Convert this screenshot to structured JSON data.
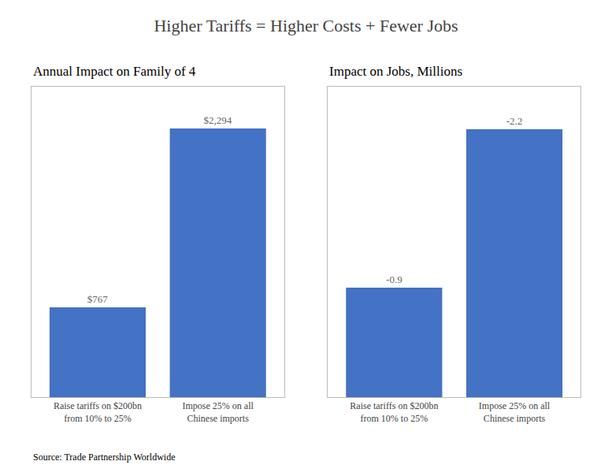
{
  "title": "Higher Tariffs = Higher Costs + Fewer Jobs",
  "annotations": [
    "Source: Trade Partnership Worldwide"
  ],
  "chart_data": [
    {
      "type": "bar",
      "subtitle": "Annual Impact on Family of 4",
      "categories": [
        "Raise tariffs on $200bn\nfrom 10% to 25%",
        "Impose 25% on all\nChinese imports"
      ],
      "values": [
        767,
        2294
      ],
      "value_labels": [
        "$767",
        "$2,294"
      ],
      "data_labels": true,
      "color": "#4472C4",
      "ylim": [
        0,
        2650
      ],
      "tick_labels": "x",
      "grid": false
    },
    {
      "type": "bar",
      "subtitle": "Impact on Jobs, Millions",
      "categories": [
        "Raise tariffs on $200bn\nfrom 10% to 25%",
        "Impose 25% on all\nChinese imports"
      ],
      "values": [
        -0.9,
        -2.2
      ],
      "data_labels": true,
      "color": "#4472C4",
      "ylim": [
        0,
        -2.55
      ],
      "tick_labels": "x",
      "grid": false
    }
  ]
}
